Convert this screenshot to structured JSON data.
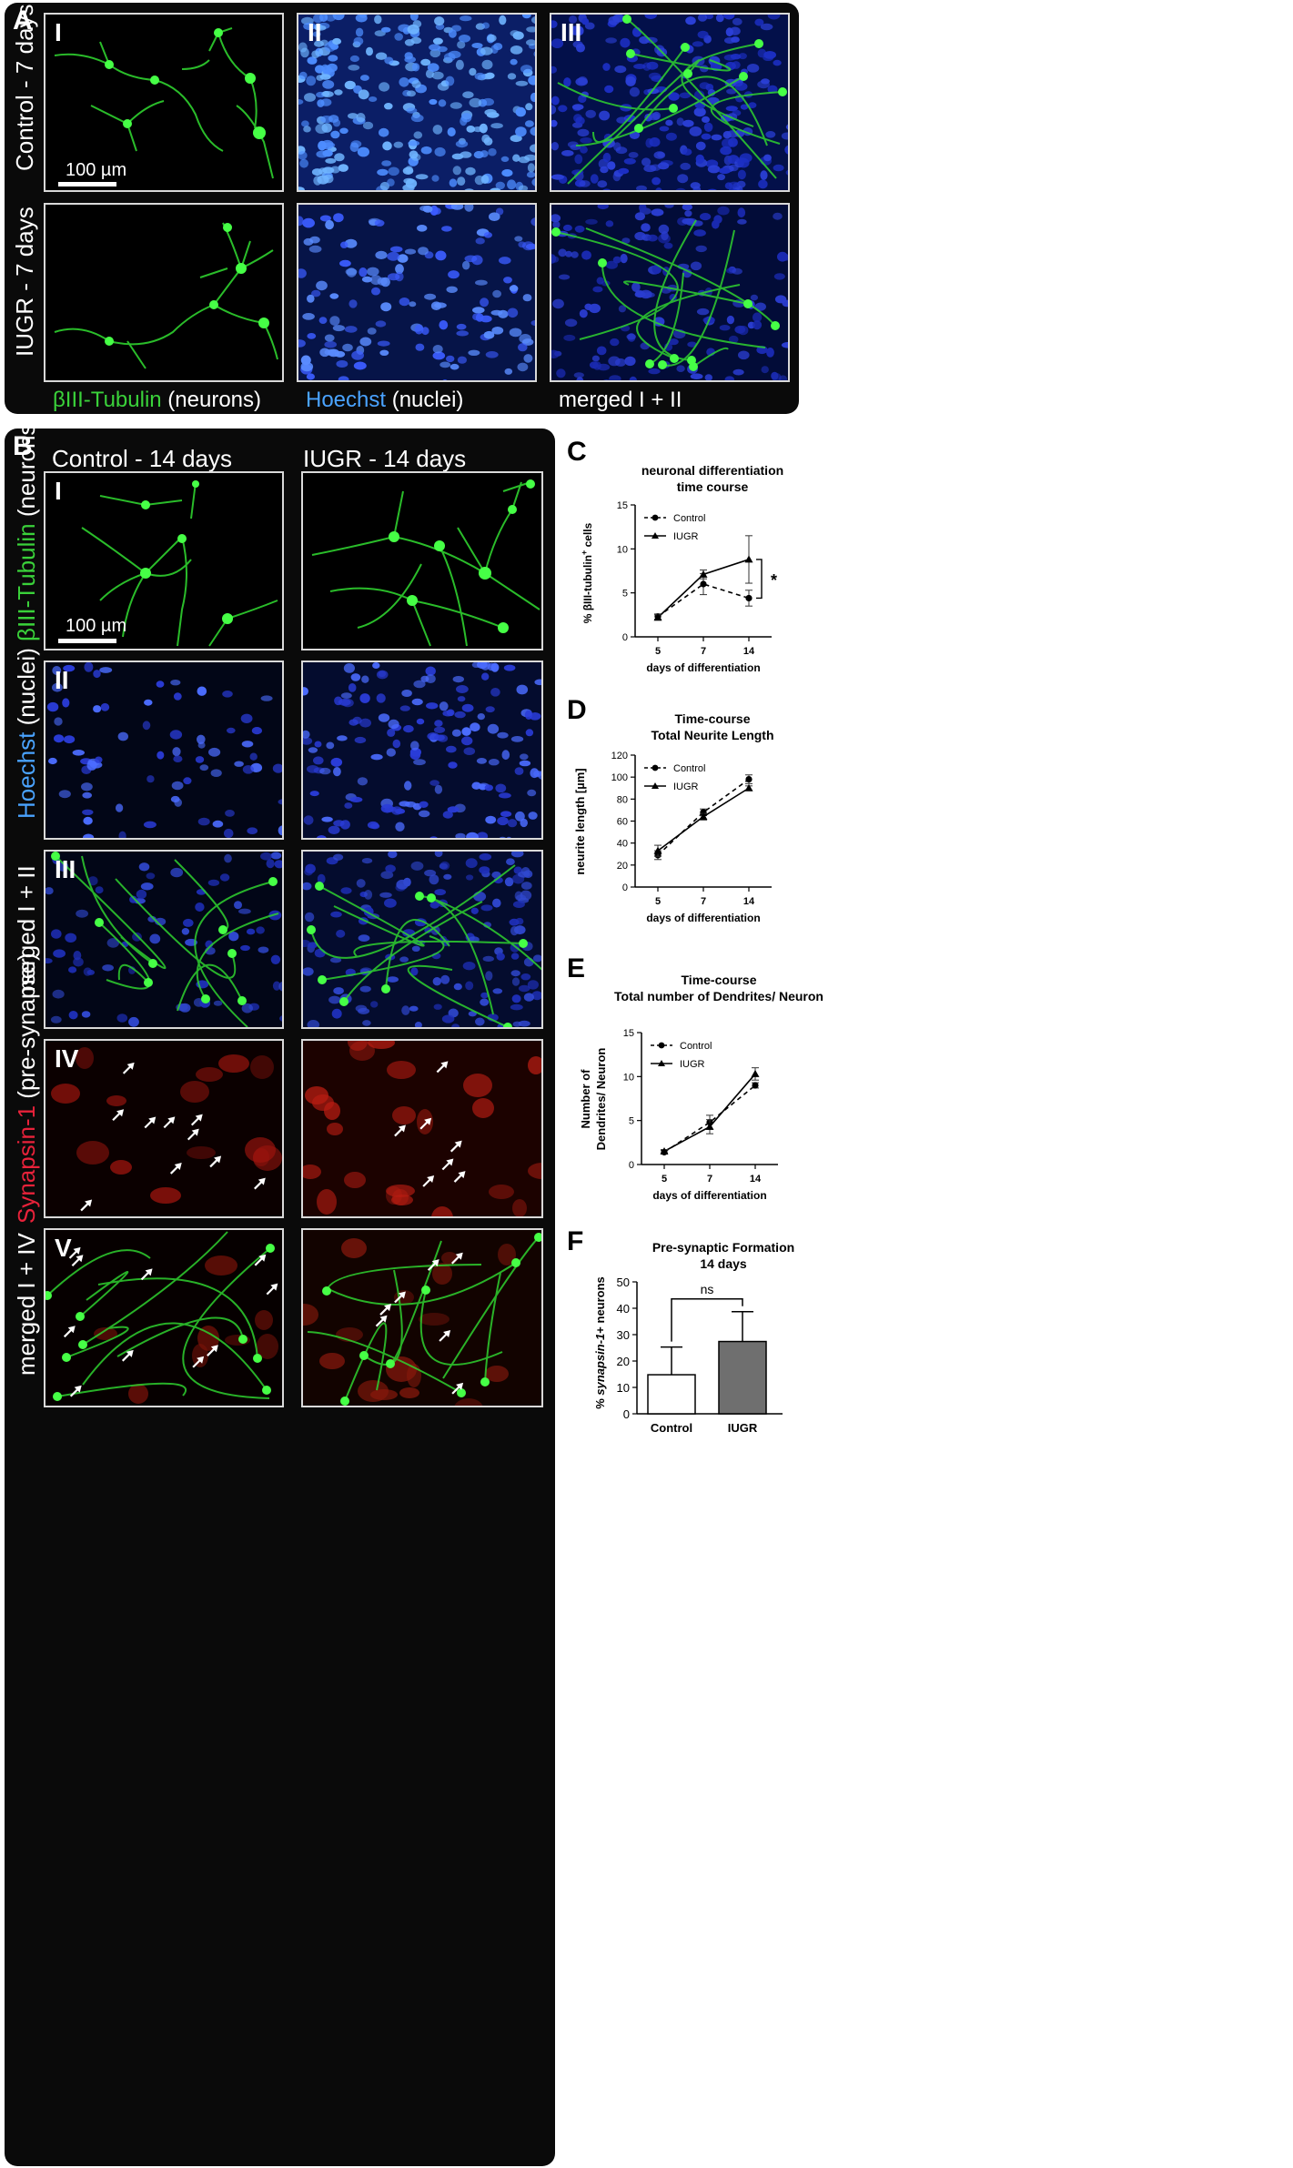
{
  "panel_a": {
    "letter": "A",
    "row_labels": [
      "Control - 7 days",
      "IUGR - 7 days"
    ],
    "column_numerals": [
      "I",
      "II",
      "III"
    ],
    "scale_bar": "100 µm",
    "captions": {
      "c1_stain": "βIII-Tubulin",
      "c1_rest": " (neurons)",
      "c2_stain": "Hoechst",
      "c2_rest": " (nuclei)",
      "c3": "merged I + II"
    },
    "colors": {
      "neuron": "#2fd12f",
      "nuclei": "#3b6cff",
      "background": "#000000"
    }
  },
  "panel_b": {
    "letter": "B",
    "column_titles": [
      "Control - 14 days",
      "IUGR - 14 days"
    ],
    "row_numerals": [
      "I",
      "II",
      "III",
      "IV",
      "V"
    ],
    "scale_bar": "100 µm",
    "row_labels": {
      "r1_stain": "βIII-Tubulin",
      "r1_rest": " (neurons)",
      "r2_stain": "Hoechst",
      "r2_rest": " (nuclei)",
      "r3": "merged I + II",
      "r4_stain": "Synapsin-1",
      "r4_rest": " (pre-synapse)",
      "r5": "merged I + IV"
    },
    "colors": {
      "synapsin": "#c0201a",
      "arrow": "#ffffff"
    }
  },
  "panel_c": {
    "letter": "C",
    "chart_data": {
      "type": "line",
      "title_lines": [
        "neuronal differentiation",
        "time course"
      ],
      "xlabel": "days of differentiation",
      "ylabel_pre": "% βIII-tubulin",
      "ylabel_sup": "+",
      "ylabel_post": " cells",
      "x": [
        "5",
        "7",
        "14"
      ],
      "ylim": [
        0,
        15
      ],
      "yticks": [
        "0",
        "5",
        "10",
        "15"
      ],
      "series": [
        {
          "name": "Control",
          "values": [
            2.3,
            6.0,
            4.4
          ],
          "err": [
            0.3,
            1.2,
            0.9
          ],
          "style": "dashed",
          "marker": "circle"
        },
        {
          "name": "IUGR",
          "values": [
            2.2,
            7.1,
            8.8
          ],
          "err": [
            0.3,
            0.5,
            2.7
          ],
          "style": "solid",
          "marker": "triangle"
        }
      ],
      "annotation": "*"
    }
  },
  "panel_d": {
    "letter": "D",
    "chart_data": {
      "type": "line",
      "title_lines": [
        "Time-course",
        "Total Neurite Length"
      ],
      "xlabel": "days of differentiation",
      "ylabel": "neurite length [µm]",
      "x": [
        "5",
        "7",
        "14"
      ],
      "ylim": [
        0,
        120
      ],
      "yticks": [
        "0",
        "20",
        "40",
        "60",
        "80",
        "100",
        "120"
      ],
      "series": [
        {
          "name": "Control",
          "values": [
            29,
            68,
            98
          ],
          "err": [
            4,
            3,
            4
          ],
          "style": "dashed",
          "marker": "circle"
        },
        {
          "name": "IUGR",
          "values": [
            33,
            64,
            90
          ],
          "err": [
            5,
            3,
            2
          ],
          "style": "solid",
          "marker": "triangle"
        }
      ]
    }
  },
  "panel_e": {
    "letter": "E",
    "chart_data": {
      "type": "line",
      "title_lines": [
        "Time-course",
        "Total number of Dendrites/ Neuron"
      ],
      "xlabel": "days of differentiation",
      "ylabel_lines": [
        "Number of",
        "Dendrites/ Neuron"
      ],
      "x": [
        "5",
        "7",
        "14"
      ],
      "ylim": [
        0,
        15
      ],
      "yticks": [
        "0",
        "5",
        "10",
        "15"
      ],
      "series": [
        {
          "name": "Control",
          "values": [
            1.4,
            4.8,
            9.0
          ],
          "err": [
            0.2,
            0.8,
            0.3
          ],
          "style": "dashed",
          "marker": "circle"
        },
        {
          "name": "IUGR",
          "values": [
            1.5,
            4.3,
            10.3
          ],
          "err": [
            0.2,
            0.8,
            0.7
          ],
          "style": "solid",
          "marker": "triangle"
        }
      ]
    }
  },
  "panel_f": {
    "letter": "F",
    "chart_data": {
      "type": "bar",
      "title_lines": [
        "Pre-synaptic Formation",
        "14 days"
      ],
      "ylabel_pre": "% ",
      "ylabel_italic": "synapsin-1",
      "ylabel_post": "+ neurons",
      "categories": [
        "Control",
        "IUGR"
      ],
      "values": [
        14.8,
        27.4
      ],
      "err": [
        10.5,
        11.3
      ],
      "colors": [
        "#ffffff",
        "#6f6f6f"
      ],
      "ylim": [
        0,
        50
      ],
      "yticks": [
        "0",
        "10",
        "20",
        "30",
        "40",
        "50"
      ],
      "annotation": "ns"
    }
  }
}
